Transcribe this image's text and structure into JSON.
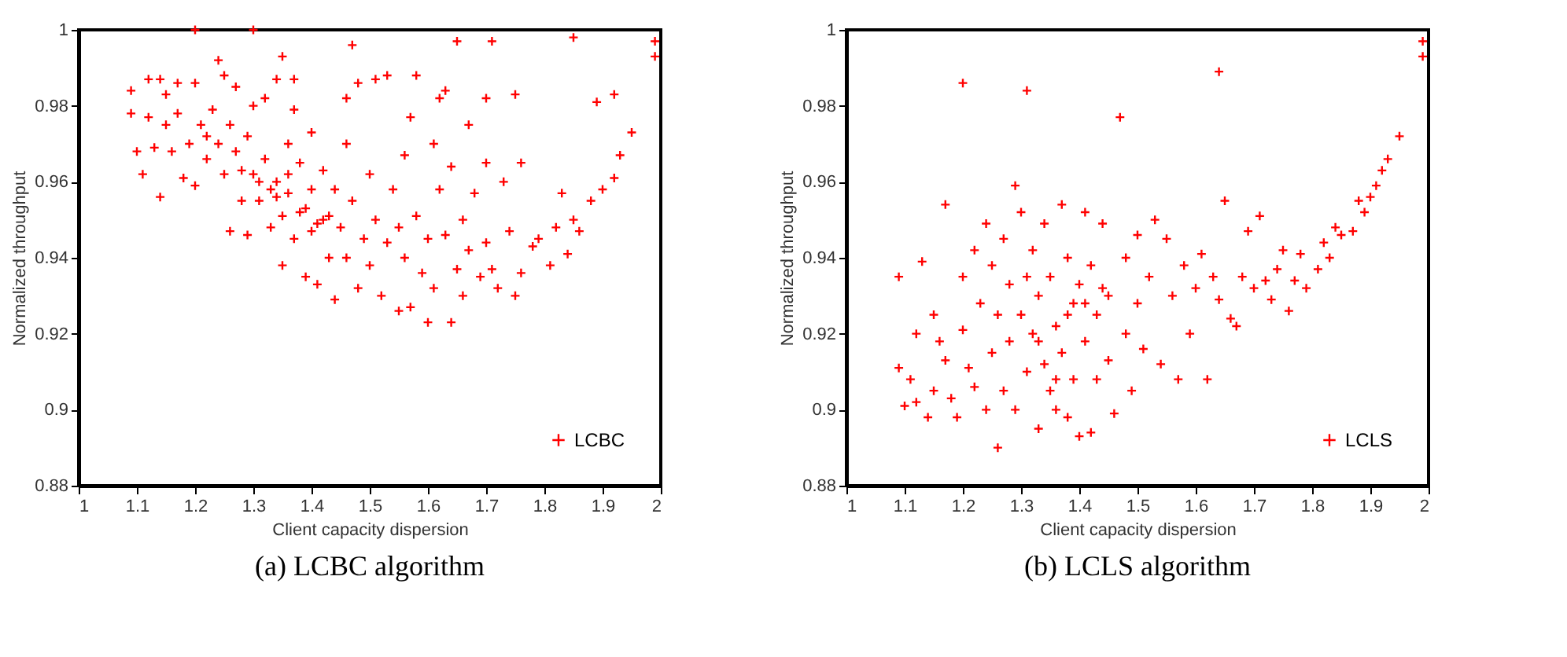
{
  "chart_data": [
    {
      "type": "scatter",
      "title": "(a) LCBC algorithm",
      "xlabel": "Client capacity dispersion",
      "ylabel": "Normalized throughput",
      "xlim": [
        1,
        2
      ],
      "ylim": [
        0.88,
        1
      ],
      "xticks": [
        1,
        1.1,
        1.2,
        1.3,
        1.4,
        1.5,
        1.6,
        1.7,
        1.8,
        1.9,
        2
      ],
      "yticks": [
        0.88,
        0.9,
        0.92,
        0.94,
        0.96,
        0.98,
        1
      ],
      "grid": false,
      "legend": "bottom right",
      "marker": "cross",
      "series": [
        {
          "name": "LCBC",
          "color": "#ff0000",
          "x": [
            1.09,
            1.09,
            1.1,
            1.11,
            1.12,
            1.12,
            1.13,
            1.14,
            1.14,
            1.15,
            1.15,
            1.16,
            1.17,
            1.17,
            1.18,
            1.19,
            1.2,
            1.2,
            1.21,
            1.22,
            1.23,
            1.24,
            1.24,
            1.25,
            1.25,
            1.26,
            1.26,
            1.27,
            1.27,
            1.28,
            1.29,
            1.29,
            1.3,
            1.3,
            1.31,
            1.32,
            1.32,
            1.33,
            1.33,
            1.34,
            1.34,
            1.35,
            1.35,
            1.35,
            1.36,
            1.36,
            1.37,
            1.37,
            1.37,
            1.38,
            1.38,
            1.39,
            1.4,
            1.4,
            1.4,
            1.41,
            1.42,
            1.42,
            1.43,
            1.44,
            1.44,
            1.45,
            1.46,
            1.46,
            1.46,
            1.47,
            1.48,
            1.48,
            1.49,
            1.5,
            1.5,
            1.51,
            1.51,
            1.52,
            1.53,
            1.53,
            1.54,
            1.55,
            1.55,
            1.56,
            1.56,
            1.57,
            1.57,
            1.58,
            1.58,
            1.59,
            1.6,
            1.6,
            1.61,
            1.61,
            1.62,
            1.62,
            1.63,
            1.63,
            1.64,
            1.64,
            1.65,
            1.65,
            1.66,
            1.66,
            1.67,
            1.67,
            1.68,
            1.69,
            1.7,
            1.7,
            1.7,
            1.71,
            1.71,
            1.72,
            1.73,
            1.74,
            1.75,
            1.75,
            1.76,
            1.76,
            1.78,
            1.79,
            1.81,
            1.82,
            1.83,
            1.84,
            1.85,
            1.85,
            1.86,
            1.88,
            1.89,
            1.9,
            1.92,
            1.92,
            1.93,
            1.95,
            1.99,
            1.99,
            1.2,
            1.3,
            1.47,
            1.22,
            1.28,
            1.31,
            1.34,
            1.39,
            1.43,
            1.36,
            1.41
          ],
          "values": [
            0.984,
            0.978,
            0.968,
            0.962,
            0.987,
            0.977,
            0.969,
            0.987,
            0.956,
            0.983,
            0.975,
            0.968,
            0.986,
            0.978,
            0.961,
            0.97,
            0.986,
            0.959,
            0.975,
            0.966,
            0.979,
            0.992,
            0.97,
            0.988,
            0.962,
            0.975,
            0.947,
            0.985,
            0.968,
            0.955,
            0.972,
            0.946,
            0.98,
            0.962,
            0.955,
            0.982,
            0.966,
            0.958,
            0.948,
            0.987,
            0.96,
            0.993,
            0.951,
            0.938,
            0.97,
            0.957,
            0.987,
            0.979,
            0.945,
            0.965,
            0.952,
            0.935,
            0.973,
            0.958,
            0.947,
            0.933,
            0.963,
            0.95,
            0.94,
            0.929,
            0.958,
            0.948,
            0.982,
            0.97,
            0.94,
            0.955,
            0.986,
            0.932,
            0.945,
            0.962,
            0.938,
            0.987,
            0.95,
            0.93,
            0.988,
            0.944,
            0.958,
            0.926,
            0.948,
            0.967,
            0.94,
            0.977,
            0.927,
            0.988,
            0.951,
            0.936,
            0.923,
            0.945,
            0.97,
            0.932,
            0.958,
            0.982,
            0.946,
            0.984,
            0.923,
            0.964,
            0.997,
            0.937,
            0.95,
            0.93,
            0.975,
            0.942,
            0.957,
            0.935,
            0.982,
            0.965,
            0.944,
            0.997,
            0.937,
            0.932,
            0.96,
            0.947,
            0.983,
            0.93,
            0.965,
            0.936,
            0.943,
            0.945,
            0.938,
            0.948,
            0.957,
            0.941,
            0.998,
            0.95,
            0.947,
            0.955,
            0.981,
            0.958,
            0.983,
            0.961,
            0.967,
            0.973,
            0.993,
            0.997,
            1.0,
            1.0,
            0.996,
            0.972,
            0.963,
            0.96,
            0.956,
            0.953,
            0.951,
            0.962,
            0.949
          ]
        }
      ]
    },
    {
      "type": "scatter",
      "title": "(b) LCLS algorithm",
      "xlabel": "Client capacity dispersion",
      "ylabel": "Normalized throughput",
      "xlim": [
        1,
        2
      ],
      "ylim": [
        0.88,
        1
      ],
      "xticks": [
        1,
        1.1,
        1.2,
        1.3,
        1.4,
        1.5,
        1.6,
        1.7,
        1.8,
        1.9,
        2
      ],
      "yticks": [
        0.88,
        0.9,
        0.92,
        0.94,
        0.96,
        0.98,
        1
      ],
      "grid": false,
      "legend": "bottom right",
      "marker": "cross",
      "series": [
        {
          "name": "LCLS",
          "color": "#ff0000",
          "x": [
            1.09,
            1.09,
            1.1,
            1.11,
            1.12,
            1.12,
            1.13,
            1.14,
            1.15,
            1.15,
            1.16,
            1.17,
            1.17,
            1.18,
            1.19,
            1.2,
            1.2,
            1.2,
            1.21,
            1.22,
            1.22,
            1.23,
            1.24,
            1.24,
            1.25,
            1.25,
            1.26,
            1.26,
            1.27,
            1.27,
            1.28,
            1.28,
            1.29,
            1.29,
            1.3,
            1.3,
            1.31,
            1.31,
            1.32,
            1.32,
            1.33,
            1.33,
            1.34,
            1.34,
            1.35,
            1.35,
            1.36,
            1.36,
            1.37,
            1.37,
            1.38,
            1.38,
            1.39,
            1.39,
            1.4,
            1.4,
            1.41,
            1.41,
            1.42,
            1.42,
            1.43,
            1.43,
            1.44,
            1.45,
            1.45,
            1.46,
            1.47,
            1.48,
            1.48,
            1.49,
            1.5,
            1.5,
            1.51,
            1.52,
            1.53,
            1.54,
            1.55,
            1.56,
            1.57,
            1.58,
            1.59,
            1.6,
            1.61,
            1.62,
            1.63,
            1.64,
            1.64,
            1.65,
            1.66,
            1.67,
            1.68,
            1.69,
            1.7,
            1.71,
            1.72,
            1.73,
            1.74,
            1.75,
            1.76,
            1.77,
            1.78,
            1.79,
            1.81,
            1.82,
            1.83,
            1.84,
            1.85,
            1.87,
            1.88,
            1.89,
            1.9,
            1.91,
            1.92,
            1.93,
            1.95,
            1.99,
            1.99,
            1.31,
            1.33,
            1.36,
            1.38,
            1.41,
            1.44
          ],
          "values": [
            0.935,
            0.911,
            0.901,
            0.908,
            0.92,
            0.902,
            0.939,
            0.898,
            0.925,
            0.905,
            0.918,
            0.954,
            0.913,
            0.903,
            0.898,
            0.986,
            0.935,
            0.921,
            0.911,
            0.942,
            0.906,
            0.928,
            0.9,
            0.949,
            0.938,
            0.915,
            0.89,
            0.925,
            0.945,
            0.905,
            0.933,
            0.918,
            0.959,
            0.9,
            0.952,
            0.925,
            0.984,
            0.91,
            0.942,
            0.92,
            0.895,
            0.93,
            0.949,
            0.912,
            0.905,
            0.935,
            0.922,
            0.9,
            0.954,
            0.915,
            0.94,
            0.898,
            0.928,
            0.908,
            0.893,
            0.933,
            0.952,
            0.918,
            0.894,
            0.938,
            0.925,
            0.908,
            0.949,
            0.93,
            0.913,
            0.899,
            0.977,
            0.94,
            0.92,
            0.905,
            0.946,
            0.928,
            0.916,
            0.935,
            0.95,
            0.912,
            0.945,
            0.93,
            0.908,
            0.938,
            0.92,
            0.932,
            0.941,
            0.908,
            0.935,
            0.989,
            0.929,
            0.955,
            0.924,
            0.922,
            0.935,
            0.947,
            0.932,
            0.951,
            0.934,
            0.929,
            0.937,
            0.942,
            0.926,
            0.934,
            0.941,
            0.932,
            0.937,
            0.944,
            0.94,
            0.948,
            0.946,
            0.947,
            0.955,
            0.952,
            0.956,
            0.959,
            0.963,
            0.966,
            0.972,
            0.993,
            0.997,
            0.935,
            0.918,
            0.908,
            0.925,
            0.928,
            0.932
          ]
        }
      ]
    }
  ]
}
